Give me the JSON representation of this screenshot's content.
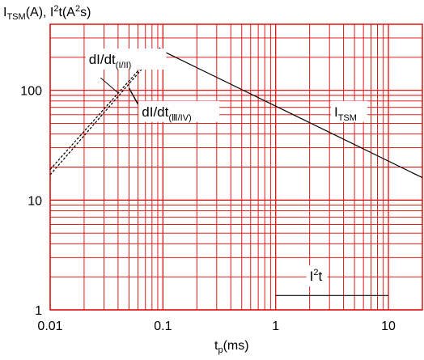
{
  "chart_data": {
    "type": "line",
    "x_scale": "log",
    "y_scale": "log",
    "xlim": [
      0.01,
      20
    ],
    "ylim": [
      1,
      400
    ],
    "grid": true,
    "ylabel": "I_TSM(A), I²t(A²s)",
    "xlabel": "t_p(ms)",
    "x_ticks": [
      "0.01",
      "0.1",
      "1",
      "10"
    ],
    "y_ticks": [
      "1",
      "10",
      "100"
    ],
    "series": [
      {
        "name": "dI/dt(I/II)",
        "style": "dashed",
        "x": [
          0.01,
          0.09
        ],
        "y": [
          19,
          240
        ]
      },
      {
        "name": "dI/dt(III/IV)",
        "style": "dashed",
        "x": [
          0.01,
          0.095
        ],
        "y": [
          17,
          245
        ]
      },
      {
        "name": "I_TSM",
        "style": "solid",
        "x": [
          0.09,
          20
        ],
        "y": [
          240,
          16
        ]
      },
      {
        "name": "I²t",
        "style": "solid",
        "x": [
          1,
          10
        ],
        "y": [
          1.35,
          1.35
        ]
      }
    ],
    "annotations": [
      {
        "text_main": "dI/dt",
        "text_sub": "(I/II)",
        "x": 0.022,
        "y": 180
      },
      {
        "text_main": "dI/dt",
        "text_sub": "(Ⅲ/IV)",
        "x": 0.065,
        "y": 60
      },
      {
        "text_main": "I",
        "text_sub": "TSM",
        "x": 3.3,
        "y": 60
      },
      {
        "text_main": "I",
        "text_sup": "2",
        "text_tail": "t",
        "x": 2.0,
        "y": 1.9
      }
    ],
    "colors": {
      "grid": "#e00000",
      "line": "#000000",
      "background": "#ffffff"
    }
  }
}
